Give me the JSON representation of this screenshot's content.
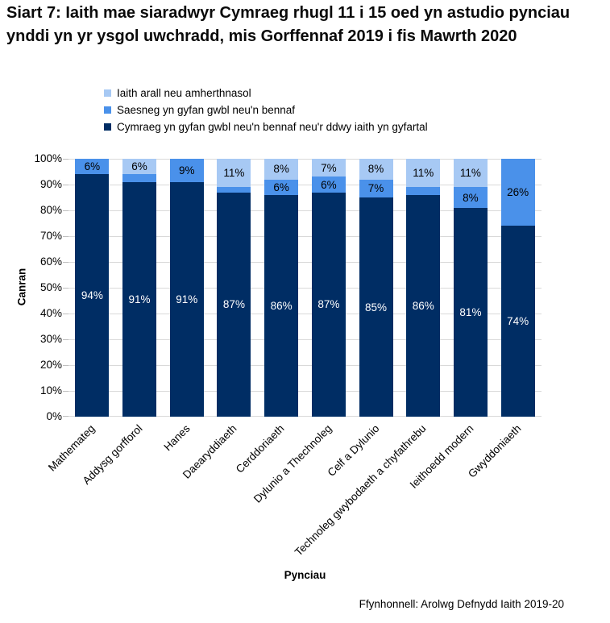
{
  "title": "Siart 7: Iaith mae siaradwyr Cymraeg rhugl 11 i 15 oed yn astudio pynciau ynddi yn yr ysgol uwchradd, mis Gorffennaf 2019 i fis Mawrth 2020",
  "source": "Ffynhonnell: Arolwg Defnydd Iaith 2019-20",
  "colors": {
    "cymraeg_dark_navy": "#002d64",
    "saesneg_medium_blue": "#4a91ea",
    "arall_light_blue": "#a7c9f4",
    "gridline_gray": "#d9d9d9"
  },
  "legend": [
    {
      "label": "Iaith arall neu amherthnasol",
      "color": "#a7c9f4"
    },
    {
      "label": "Saesneg yn gyfan gwbl neu'n bennaf",
      "color": "#4a91ea"
    },
    {
      "label": "Cymraeg yn gyfan gwbl neu'n bennaf neu'r ddwy iaith yn gyfartal",
      "color": "#002d64"
    }
  ],
  "chart_data": {
    "type": "bar",
    "stacked": true,
    "stack_order": "bottom-to-top",
    "grid": true,
    "legend_position": "top-left",
    "xlabel": "Pynciau",
    "ylabel": "Canran",
    "ylim": [
      0,
      100
    ],
    "yticks": [
      "0%",
      "10%",
      "20%",
      "30%",
      "40%",
      "50%",
      "60%",
      "70%",
      "80%",
      "90%",
      "100%"
    ],
    "data_label_min": 6,
    "data_label_suffix": "%",
    "categories": [
      "Mathemateg",
      "Addysg gorfforol",
      "Hanes",
      "Daearyddiaeth",
      "Cerddoriaeth",
      "Dylunio a Thechnoleg",
      "Celf a Dylunio",
      "Technoleg gwybodaeth a chyfathrebu",
      "Ieithoedd modern",
      "Gwyddoniaeth"
    ],
    "series": [
      {
        "name": "Cymraeg yn gyfan gwbl neu'n bennaf neu'r ddwy iaith yn gyfartal",
        "color": "#002d64",
        "label_color": "#ffffff",
        "values": [
          94,
          91,
          91,
          87,
          86,
          87,
          85,
          86,
          81,
          74
        ]
      },
      {
        "name": "Saesneg yn gyfan gwbl neu'n bennaf",
        "color": "#4a91ea",
        "label_color": "#000000",
        "values": [
          6,
          3,
          9,
          2,
          6,
          6,
          7,
          3,
          8,
          26
        ]
      },
      {
        "name": "Iaith arall neu amherthnasol",
        "color": "#a7c9f4",
        "label_color": "#000000",
        "values": [
          0,
          6,
          0,
          11,
          8,
          7,
          8,
          11,
          11,
          0
        ]
      }
    ]
  }
}
